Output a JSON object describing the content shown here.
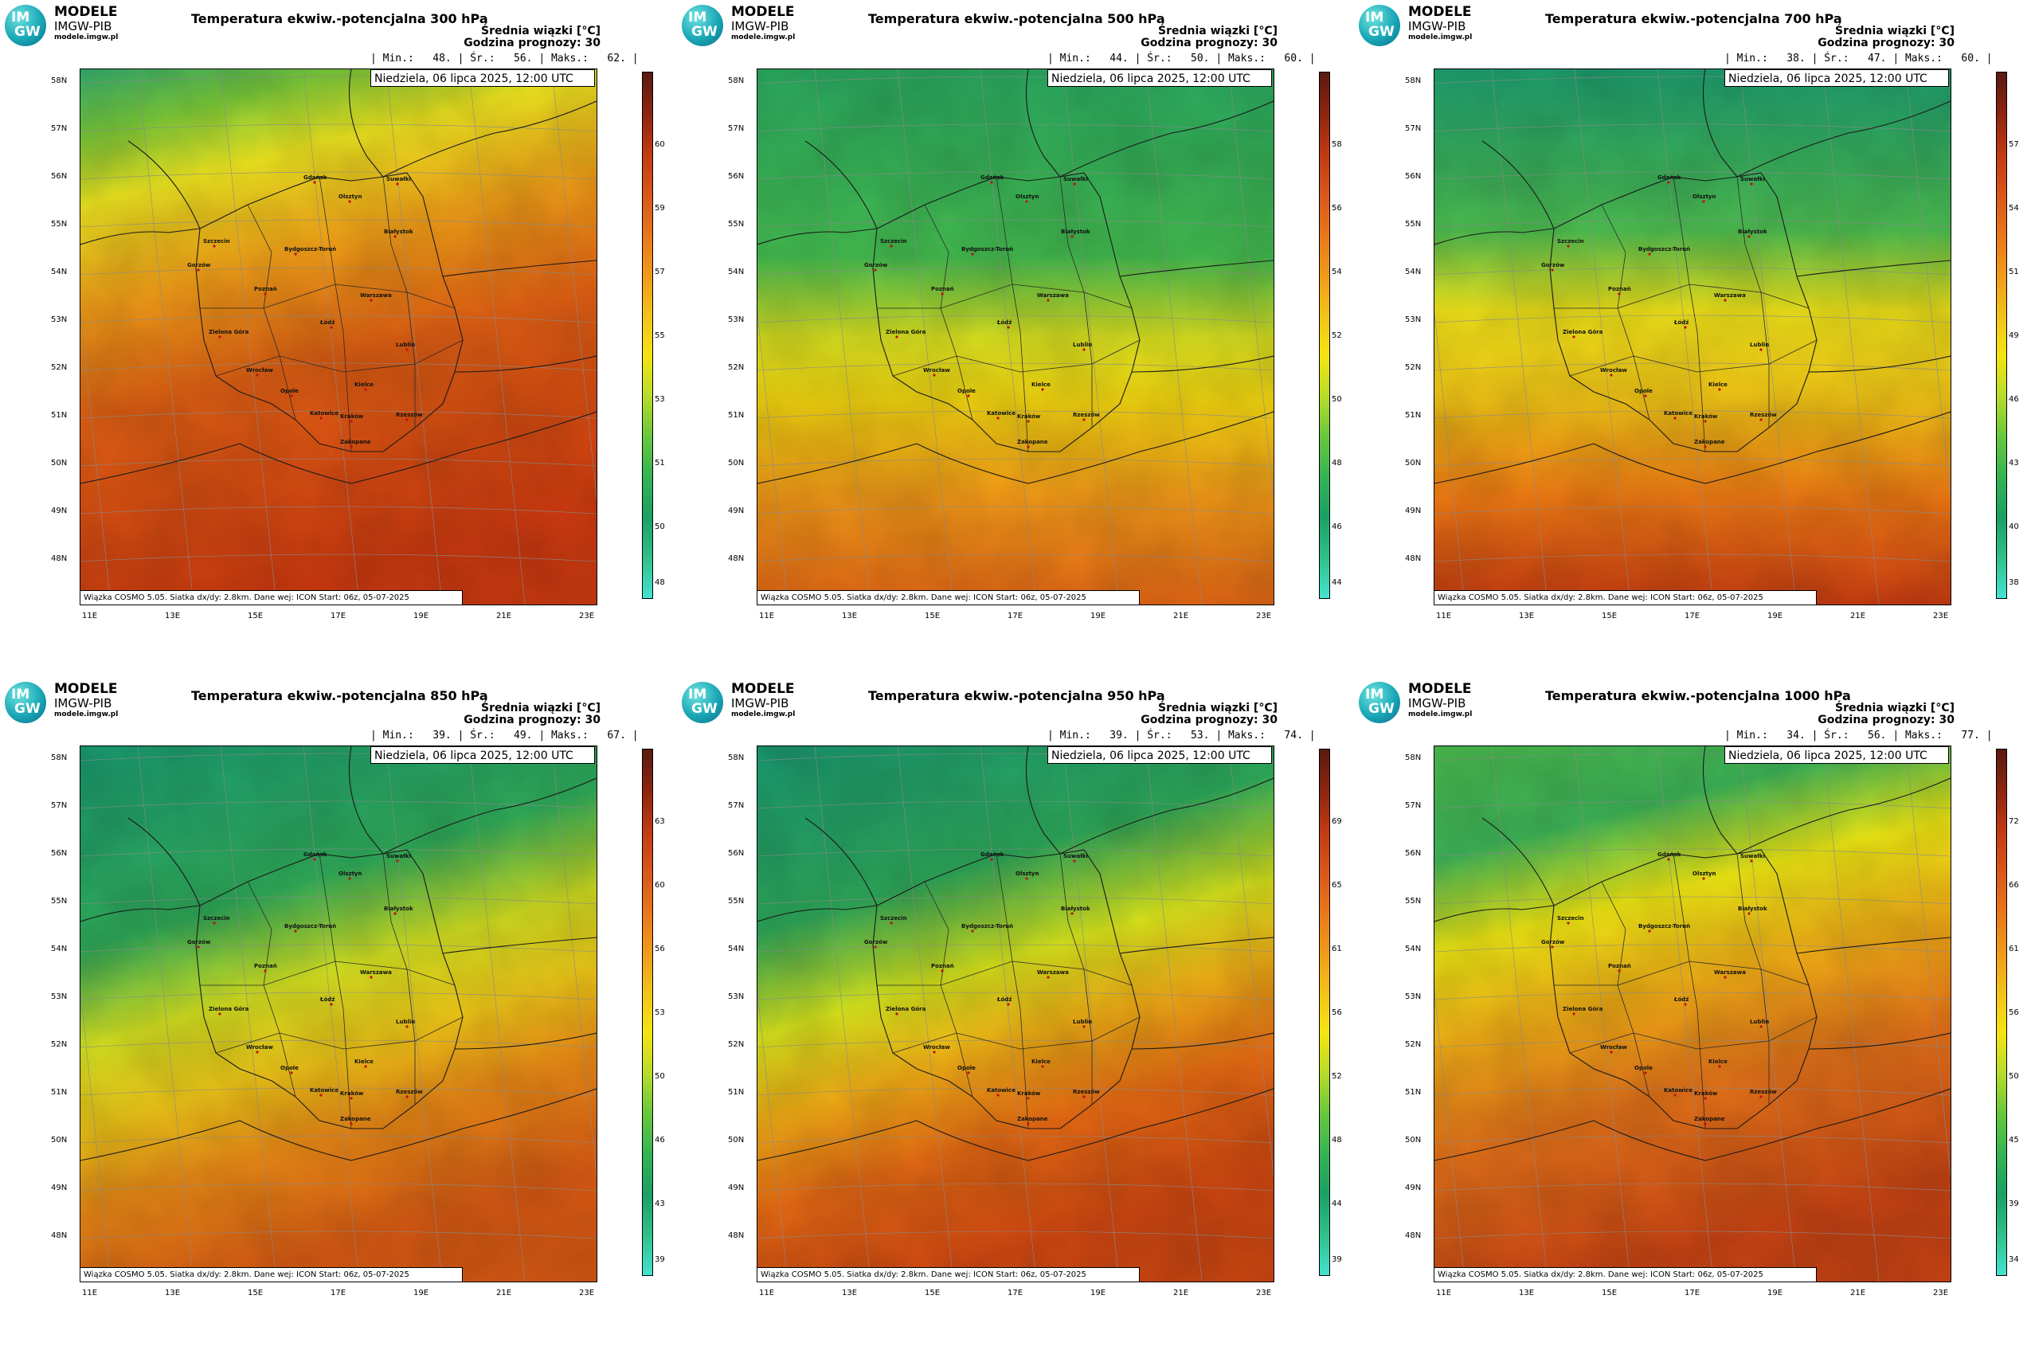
{
  "logo": {
    "line1": "MODELE",
    "line2": "IMGW-PIB",
    "line3": "modele.imgw.pl",
    "badge_top": "IM",
    "badge_bottom": "GW"
  },
  "common": {
    "info_label": "Średnia wiązki [°C]",
    "forecast_label": "Godzina prognozy: 30",
    "date": "Niedziela, 06 lipca 2025, 12:00 UTC",
    "footer": "Wiązka COSMO 5.05. Siatka dx/dy: 2.8km. Dane wej: ICON Start: 06z, 05-07-2025",
    "lat_labels": [
      "58N",
      "57N",
      "56N",
      "55N",
      "54N",
      "53N",
      "52N",
      "51N",
      "50N",
      "49N",
      "48N"
    ],
    "lon_labels": [
      "11E",
      "13E",
      "15E",
      "17E",
      "19E",
      "21E",
      "23E"
    ],
    "cities": [
      "Gdańsk",
      "Olsztyn",
      "Suwałki",
      "Szczecin",
      "Bydgoszcz-Toruń",
      "Białystok",
      "Gorzów",
      "Poznań",
      "Warszawa",
      "Łódź",
      "Zielona Góra",
      "Lublin",
      "Wrocław",
      "Opole",
      "Kielce",
      "Katowice",
      "Kraków",
      "Rzeszów",
      "Zakopane"
    ],
    "colors": {
      "cyan": "#44e8d8",
      "green": "#27b060",
      "yellow": "#f5ef10",
      "orange": "#f08a10",
      "red": "#d04010",
      "darkred": "#5a1a10"
    }
  },
  "panels": [
    {
      "title": "Temperatura ekwiw.-potencjalna 300 hPa",
      "stats": "| Min.:   48. | Śr.:   56. | Maks.:   62. |",
      "cbar_ticks": [
        "60",
        "59",
        "57",
        "55",
        "53",
        "51",
        "50",
        "48"
      ],
      "field": "p300"
    },
    {
      "title": "Temperatura ekwiw.-potencjalna 500 hPa",
      "stats": "| Min.:   44. | Śr.:   50. | Maks.:   60. |",
      "cbar_ticks": [
        "58",
        "56",
        "54",
        "52",
        "50",
        "48",
        "46",
        "44"
      ],
      "field": "p500"
    },
    {
      "title": "Temperatura ekwiw.-potencjalna 700 hPa",
      "stats": "| Min.:   38. | Śr.:   47. | Maks.:   60. |",
      "cbar_ticks": [
        "57",
        "54",
        "51",
        "49",
        "46",
        "43",
        "40",
        "38"
      ],
      "field": "p700"
    },
    {
      "title": "Temperatura ekwiw.-potencjalna 850 hPa",
      "stats": "| Min.:   39. | Śr.:   49. | Maks.:   67. |",
      "cbar_ticks": [
        "63",
        "60",
        "56",
        "53",
        "50",
        "46",
        "43",
        "39"
      ],
      "field": "p850"
    },
    {
      "title": "Temperatura ekwiw.-potencjalna 950 hPa",
      "stats": "| Min.:   39. | Śr.:   53. | Maks.:   74. |",
      "cbar_ticks": [
        "69",
        "65",
        "61",
        "56",
        "52",
        "48",
        "44",
        "39"
      ],
      "field": "p950"
    },
    {
      "title": "Temperatura ekwiw.-potencjalna 1000 hPa",
      "stats": "| Min.:   34. | Śr.:   56. | Maks.:   77. |",
      "cbar_ticks": [
        "72",
        "66",
        "61",
        "56",
        "50",
        "45",
        "39",
        "34"
      ],
      "field": "p1000"
    }
  ]
}
